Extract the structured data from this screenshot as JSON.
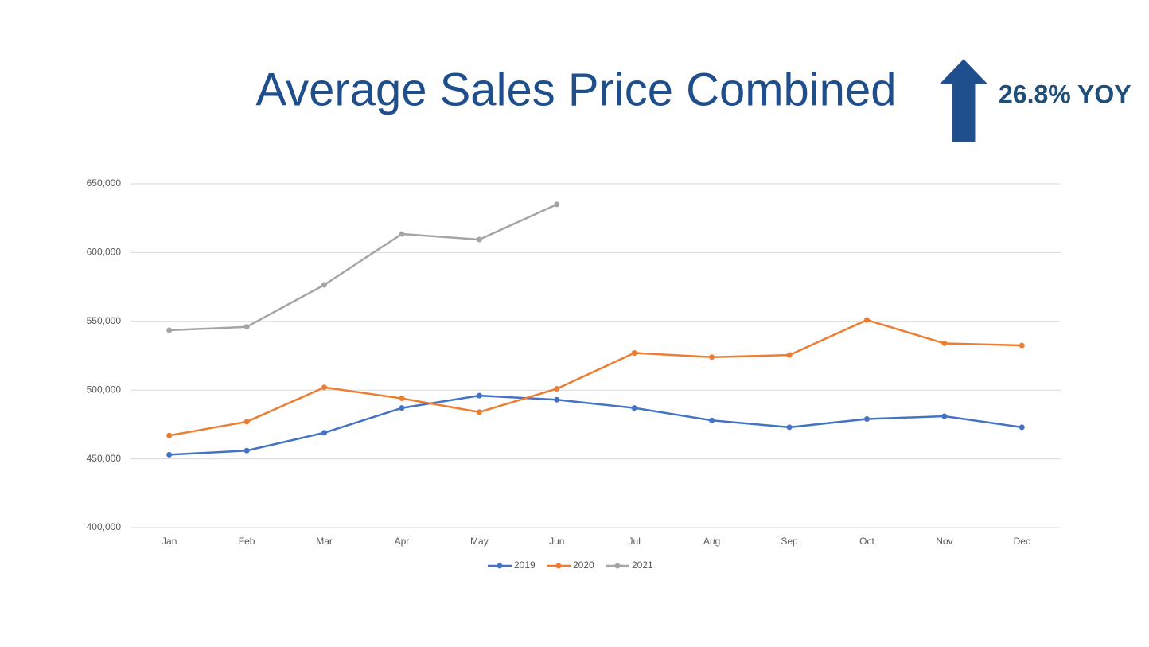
{
  "chart_data": {
    "type": "line",
    "title": "Average Sales Price Combined",
    "annotation": "26.8% YOY",
    "categories": [
      "Jan",
      "Feb",
      "Mar",
      "Apr",
      "May",
      "Jun",
      "Jul",
      "Aug",
      "Sep",
      "Oct",
      "Nov",
      "Dec"
    ],
    "series": [
      {
        "name": "2019",
        "color": "#4472c4",
        "values": [
          453000,
          456000,
          469000,
          487000,
          496000,
          493000,
          487000,
          478000,
          473000,
          479000,
          481000,
          473000
        ]
      },
      {
        "name": "2020",
        "color": "#ed7d31",
        "values": [
          467000,
          477000,
          502000,
          494000,
          484000,
          501000,
          527000,
          524000,
          525500,
          551000,
          534000,
          532500
        ]
      },
      {
        "name": "2021",
        "color": "#a5a5a5",
        "values": [
          543500,
          546000,
          576500,
          613500,
          609500,
          635000,
          null,
          null,
          null,
          null,
          null,
          null
        ]
      }
    ],
    "ylim": [
      400000,
      650000
    ],
    "yticks": [
      {
        "value": 400000,
        "label": "400,000"
      },
      {
        "value": 450000,
        "label": "450,000"
      },
      {
        "value": 500000,
        "label": "500,000"
      },
      {
        "value": 550000,
        "label": "550,000"
      },
      {
        "value": 600000,
        "label": "600,000"
      },
      {
        "value": 650000,
        "label": "650,000"
      }
    ],
    "grid": true,
    "legend": "bottom"
  }
}
